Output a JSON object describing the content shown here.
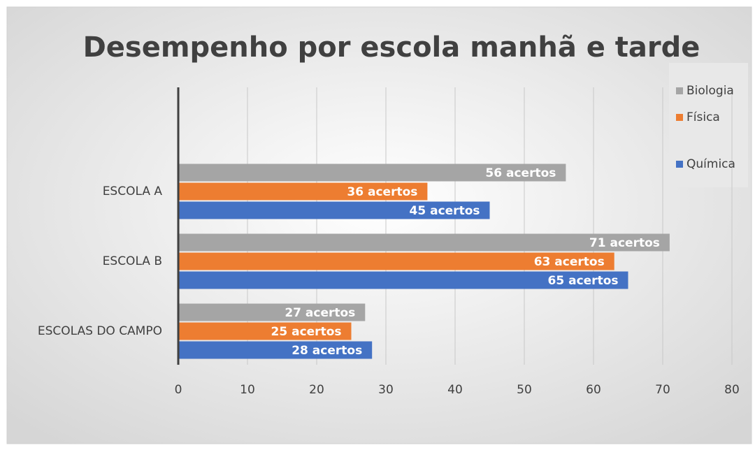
{
  "chart_data": {
    "type": "bar",
    "orientation": "horizontal",
    "title": "Desempenho por escola manhã e tarde",
    "categories": [
      "ESCOLA A",
      "ESCOLA B",
      "ESCOLAS DO CAMPO"
    ],
    "series": [
      {
        "name": "Biologia",
        "color": "#a5a5a5",
        "values": [
          56,
          71,
          27
        ],
        "value_labels": [
          "56 acertos",
          "71 acertos",
          "27 acertos"
        ]
      },
      {
        "name": "Física",
        "color": "#ed7d31",
        "values": [
          36,
          63,
          25
        ],
        "value_labels": [
          "36 acertos",
          "63 acertos",
          "25 acertos"
        ]
      },
      {
        "name": "Química",
        "color": "#4472c4",
        "values": [
          45,
          65,
          28
        ],
        "value_labels": [
          "45 acertos",
          "65 acertos",
          "28 acertos"
        ]
      }
    ],
    "xlim": [
      0,
      80
    ],
    "xticks": [
      0,
      10,
      20,
      30,
      40,
      50,
      60,
      70,
      80
    ],
    "grid": true,
    "legend": "right"
  }
}
